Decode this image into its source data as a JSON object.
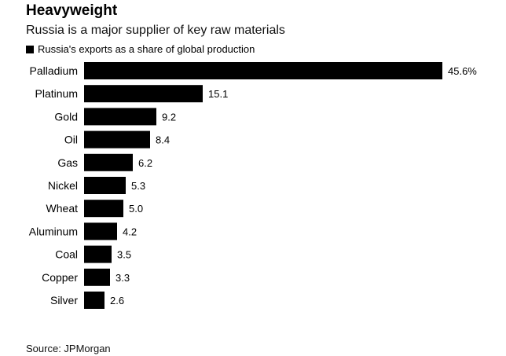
{
  "title": "Heavyweight",
  "subtitle": "Russia is a major supplier of key raw materials",
  "source": "Source: JPMorgan",
  "chart_data": {
    "type": "bar",
    "orientation": "horizontal",
    "categories": [
      "Palladium",
      "Platinum",
      "Gold",
      "Oil",
      "Gas",
      "Nickel",
      "Wheat",
      "Aluminum",
      "Coal",
      "Copper",
      "Silver"
    ],
    "series": [
      {
        "name": "Russia's exports as a share of global production",
        "values": [
          45.6,
          15.1,
          9.2,
          8.4,
          6.2,
          5.3,
          5.0,
          4.2,
          3.5,
          3.3,
          2.6
        ],
        "labels": [
          "45.6%",
          "15.1",
          "9.2",
          "8.4",
          "6.2",
          "5.3",
          "5.0",
          "4.2",
          "3.5",
          "3.3",
          "2.6"
        ]
      }
    ],
    "legend": "top-left",
    "grid": false,
    "bar_color": "#000000",
    "xlim": [
      0,
      45.6
    ]
  }
}
